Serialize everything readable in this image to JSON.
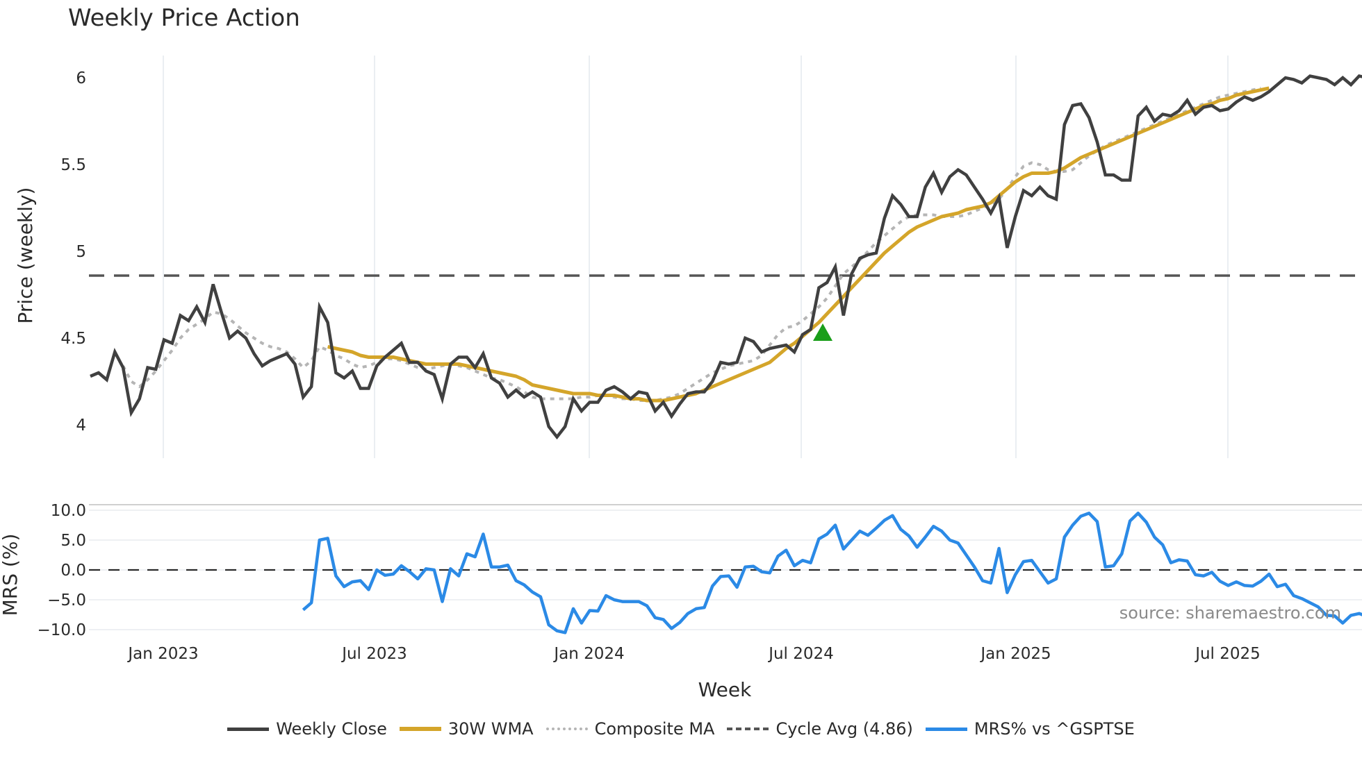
{
  "chart_data": {
    "type": "line",
    "title": "Weekly Price Action",
    "panels": [
      {
        "name": "price",
        "ylabel": "Price (weekly)",
        "yticks": [
          4,
          4.5,
          5,
          5.5,
          6
        ],
        "ylim": [
          3.82,
          6.22
        ],
        "grid": "vertical only",
        "series": [
          {
            "name": "Weekly Close",
            "color": "#404040",
            "style": "solid"
          },
          {
            "name": "30W WMA",
            "color": "#d4a52a",
            "style": "solid"
          },
          {
            "name": "Composite MA",
            "color": "#b5b5b5",
            "style": "dotted"
          },
          {
            "name": "Cycle Avg (4.86)",
            "color": "#555555",
            "style": "dashed",
            "value": 4.86
          }
        ],
        "markers": [
          {
            "type": "triangle-up",
            "color": "#1a9e1a",
            "date": "2024-08",
            "value": 4.52
          }
        ]
      },
      {
        "name": "mrs",
        "ylabel": "MRS (%)",
        "yticks": [
          -10.0,
          -5.0,
          0.0,
          5.0,
          10.0
        ],
        "ylim": [
          -11,
          11
        ],
        "series": [
          {
            "name": "MRS% vs ^GSPTSE",
            "color": "#2b8ae6",
            "style": "solid"
          }
        ],
        "reference_line": 0.0
      }
    ],
    "xlabel": "Week",
    "xticks": [
      "Jan 2023",
      "Jul 2023",
      "Jan 2024",
      "Jul 2024",
      "Jan 2025",
      "Jul 2025"
    ],
    "x_start_index_note": "weekly points, index 0 ≈ late Oct 2022",
    "close": [
      4.28,
      4.3,
      4.26,
      4.42,
      4.33,
      4.07,
      4.15,
      4.33,
      4.32,
      4.49,
      4.47,
      4.63,
      4.6,
      4.68,
      4.59,
      4.81,
      4.65,
      4.5,
      4.54,
      4.5,
      4.41,
      4.34,
      4.37,
      4.39,
      4.41,
      4.35,
      4.16,
      4.22,
      4.68,
      4.59,
      4.3,
      4.27,
      4.31,
      4.21,
      4.21,
      4.34,
      4.39,
      4.43,
      4.47,
      4.36,
      4.36,
      4.31,
      4.29,
      4.15,
      4.35,
      4.39,
      4.39,
      4.33,
      4.41,
      4.27,
      4.24,
      4.16,
      4.2,
      4.16,
      4.19,
      4.16,
      3.99,
      3.93,
      3.99,
      4.15,
      4.08,
      4.13,
      4.13,
      4.2,
      4.22,
      4.19,
      4.15,
      4.19,
      4.18,
      4.08,
      4.13,
      4.05,
      4.12,
      4.18,
      4.19,
      4.19,
      4.25,
      4.36,
      4.35,
      4.36,
      4.5,
      4.48,
      4.42,
      4.44,
      4.45,
      4.46,
      4.42,
      4.52,
      4.55,
      4.79,
      4.82,
      4.91,
      4.63,
      4.87,
      4.96,
      4.98,
      4.99,
      5.19,
      5.32,
      5.27,
      5.2,
      5.2,
      5.37,
      5.45,
      5.34,
      5.43,
      5.47,
      5.44,
      5.37,
      5.3,
      5.22,
      5.31,
      5.02,
      5.2,
      5.35,
      5.32,
      5.37,
      5.32,
      5.3,
      5.73,
      5.84,
      5.85,
      5.77,
      5.63,
      5.44,
      5.44,
      5.41,
      5.41,
      5.78,
      5.83,
      5.75,
      5.79,
      5.78,
      5.81,
      5.87,
      5.79,
      5.83,
      5.84,
      5.81,
      5.82,
      5.86,
      5.89,
      5.87,
      5.89,
      5.92,
      5.96,
      6.0,
      5.99,
      5.97,
      6.01,
      6.0,
      5.99,
      5.96,
      6.0,
      5.96,
      6.01,
      6.0
    ],
    "wma30_start_index": 29,
    "wma30": [
      4.45,
      4.44,
      4.43,
      4.42,
      4.4,
      4.39,
      4.39,
      4.39,
      4.39,
      4.38,
      4.37,
      4.36,
      4.35,
      4.35,
      4.35,
      4.35,
      4.35,
      4.34,
      4.33,
      4.32,
      4.31,
      4.3,
      4.29,
      4.28,
      4.26,
      4.23,
      4.22,
      4.21,
      4.2,
      4.19,
      4.18,
      4.18,
      4.18,
      4.17,
      4.17,
      4.17,
      4.16,
      4.15,
      4.15,
      4.14,
      4.14,
      4.14,
      4.15,
      4.16,
      4.17,
      4.18,
      4.2,
      4.22,
      4.24,
      4.26,
      4.28,
      4.3,
      4.32,
      4.34,
      4.36,
      4.4,
      4.44,
      4.47,
      4.51,
      4.55,
      4.59,
      4.64,
      4.69,
      4.74,
      4.79,
      4.84,
      4.89,
      4.94,
      4.99,
      5.03,
      5.07,
      5.11,
      5.14,
      5.16,
      5.18,
      5.2,
      5.21,
      5.22,
      5.24,
      5.25,
      5.26,
      5.28,
      5.32,
      5.36,
      5.4,
      5.43,
      5.45,
      5.45,
      5.45,
      5.46,
      5.48,
      5.51,
      5.54,
      5.56,
      5.58,
      5.6,
      5.62,
      5.64,
      5.66,
      5.68,
      5.7,
      5.72,
      5.74,
      5.76,
      5.78,
      5.8,
      5.82,
      5.84,
      5.85,
      5.87,
      5.88,
      5.9,
      5.91,
      5.92,
      5.93,
      5.94
    ],
    "composite_start_index": 4,
    "composite": [
      4.34,
      4.25,
      4.22,
      4.26,
      4.31,
      4.37,
      4.43,
      4.5,
      4.55,
      4.58,
      4.61,
      4.65,
      4.64,
      4.61,
      4.57,
      4.53,
      4.5,
      4.47,
      4.45,
      4.44,
      4.42,
      4.38,
      4.33,
      4.37,
      4.45,
      4.43,
      4.4,
      4.38,
      4.35,
      4.33,
      4.34,
      4.36,
      4.38,
      4.38,
      4.37,
      4.35,
      4.33,
      4.32,
      4.33,
      4.34,
      4.35,
      4.34,
      4.33,
      4.31,
      4.29,
      4.27,
      4.26,
      4.24,
      4.22,
      4.19,
      4.16,
      4.15,
      4.15,
      4.15,
      4.15,
      4.15,
      4.16,
      4.16,
      4.17,
      4.17,
      4.16,
      4.15,
      4.15,
      4.14,
      4.14,
      4.14,
      4.15,
      4.16,
      4.18,
      4.21,
      4.24,
      4.27,
      4.3,
      4.32,
      4.34,
      4.35,
      4.36,
      4.37,
      4.4,
      4.46,
      4.52,
      4.56,
      4.57,
      4.6,
      4.64,
      4.68,
      4.73,
      4.8,
      4.87,
      4.91,
      4.95,
      5.0,
      5.05,
      5.09,
      5.13,
      5.17,
      5.2,
      5.21,
      5.21,
      5.21,
      5.2,
      5.2,
      5.2,
      5.21,
      5.23,
      5.25,
      5.27,
      5.3,
      5.36,
      5.43,
      5.49,
      5.51,
      5.5,
      5.47,
      5.46,
      5.46,
      5.47,
      5.51,
      5.55,
      5.58,
      5.61,
      5.63,
      5.65,
      5.67,
      5.69,
      5.71,
      5.73,
      5.75,
      5.77,
      5.79,
      5.81,
      5.83,
      5.85,
      5.87,
      5.89,
      5.9,
      5.91,
      5.92,
      5.93,
      5.94
    ],
    "mrs_start_index": 26,
    "mrs": [
      -6.7,
      -5.5,
      5.0,
      5.3,
      -1.0,
      -2.8,
      -2.0,
      -1.8,
      -3.3,
      0.0,
      -0.9,
      -0.7,
      0.7,
      -0.3,
      -1.5,
      0.2,
      0.0,
      -5.3,
      0.2,
      -1.0,
      2.7,
      2.2,
      6.0,
      0.5,
      0.5,
      0.8,
      -1.8,
      -2.5,
      -3.7,
      -4.5,
      -9.2,
      -10.2,
      -10.5,
      -6.5,
      -8.9,
      -6.8,
      -6.9,
      -4.3,
      -5.0,
      -5.3,
      -5.3,
      -5.3,
      -6.0,
      -8.0,
      -8.3,
      -9.8,
      -8.8,
      -7.3,
      -6.5,
      -6.3,
      -2.7,
      -1.1,
      -1.0,
      -2.9,
      0.5,
      0.6,
      -0.3,
      -0.5,
      2.3,
      3.3,
      0.7,
      1.6,
      1.2,
      5.2,
      6.0,
      7.5,
      3.5,
      5.0,
      6.5,
      5.8,
      7.0,
      8.3,
      9.1,
      6.8,
      5.7,
      3.8,
      5.5,
      7.3,
      6.5,
      5.0,
      4.5,
      2.5,
      0.5,
      -1.8,
      -2.2,
      3.6,
      -3.8,
      -0.8,
      1.4,
      1.6,
      -0.3,
      -2.2,
      -1.5,
      5.5,
      7.5,
      9.0,
      9.5,
      8.1,
      0.5,
      0.7,
      2.7,
      8.2,
      9.5,
      8.0,
      5.5,
      4.2,
      1.2,
      1.7,
      1.5,
      -0.8,
      -1.0,
      -0.4,
      -1.9,
      -2.6,
      -2.0,
      -2.6,
      -2.7,
      -1.9,
      -0.7,
      -2.8,
      -2.4,
      -4.3,
      -4.8,
      -5.5,
      -6.2,
      -7.6,
      -7.7,
      -8.9,
      -7.6,
      -7.3,
      -7.8
    ]
  },
  "header": {
    "title": "Weekly Price Action"
  },
  "axes": {
    "price_ylabel": "Price (weekly)",
    "price_ticks": [
      "6",
      "5.5",
      "5",
      "4.5",
      "4"
    ],
    "mrs_ylabel": "MRS (%)",
    "mrs_ticks": [
      "10.0",
      "5.0",
      "0.0",
      "−10.0"
    ],
    "mrs_ticks_full": [
      "10.0",
      "5.0",
      "0.0",
      "−5.0",
      "−10.0"
    ],
    "xlabel": "Week",
    "xticks": [
      "Jan 2023",
      "Jul 2023",
      "Jan 2024",
      "Jul 2024",
      "Jan 2025",
      "Jul 2025"
    ]
  },
  "annotation": {
    "source": "source: sharemaestro.com"
  },
  "legend": {
    "items": [
      {
        "label": "Weekly Close",
        "color": "#404040",
        "style": "solid"
      },
      {
        "label": "30W WMA",
        "color": "#d4a52a",
        "style": "solid"
      },
      {
        "label": "Composite MA",
        "color": "#b5b5b5",
        "style": "dotted"
      },
      {
        "label": "Cycle Avg (4.86)",
        "color": "#555555",
        "style": "dashed"
      },
      {
        "label": "MRS% vs ^GSPTSE",
        "color": "#2b8ae6",
        "style": "solid"
      }
    ]
  }
}
